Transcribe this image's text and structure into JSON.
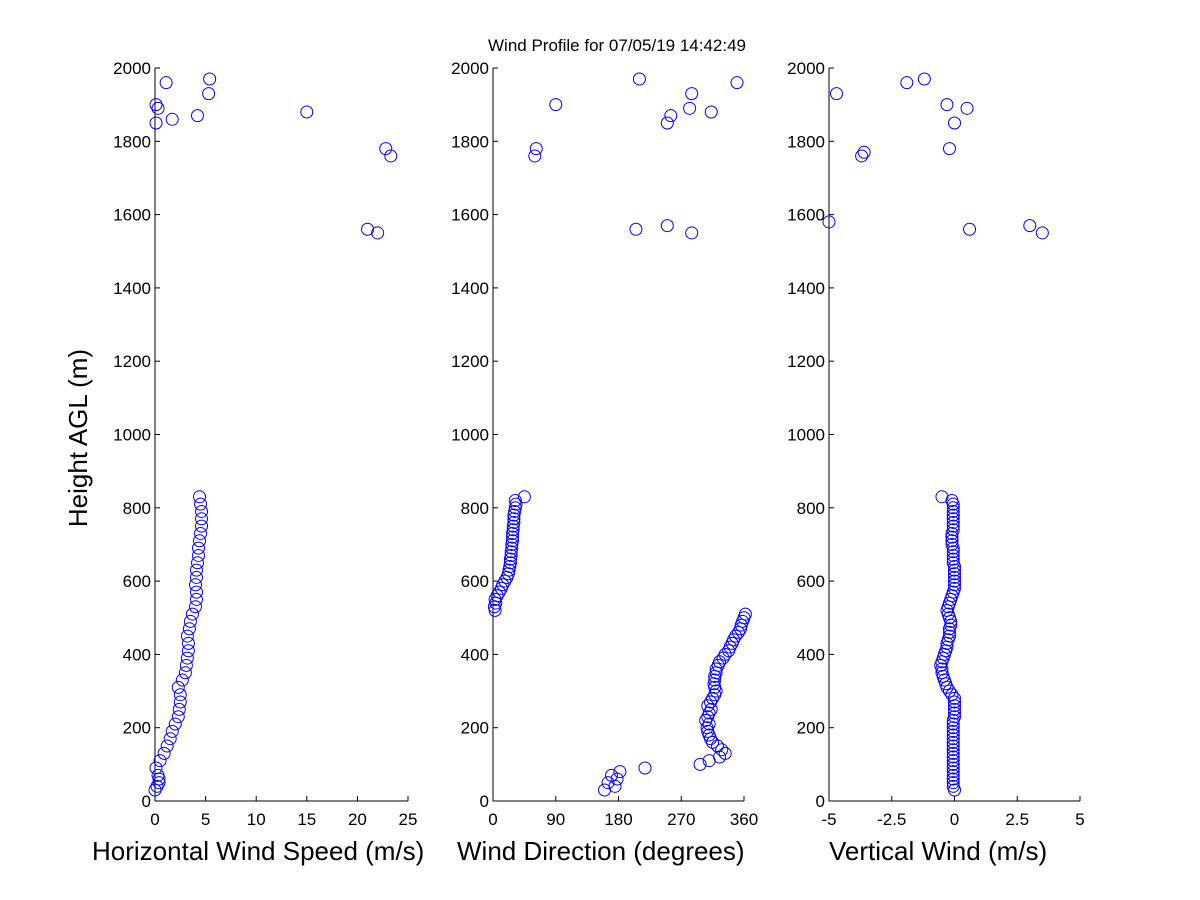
{
  "figure": {
    "title": "Wind Profile for  07/05/19 14:42:49",
    "marker_color": "#0000ff"
  },
  "chart_data": [
    {
      "type": "scatter",
      "xlabel": "Horizontal Wind Speed (m/s)",
      "ylabel": "Height AGL (m)",
      "xlim": [
        0,
        25
      ],
      "ylim": [
        0,
        2000
      ],
      "x_ticks": [
        0,
        5,
        10,
        15,
        20,
        25
      ],
      "x_tick_labels": [
        "0",
        "5",
        "10",
        "15",
        "20",
        "25"
      ],
      "y_ticks": [
        0,
        200,
        400,
        600,
        800,
        1000,
        1200,
        1400,
        1600,
        1800,
        2000
      ],
      "y_tick_labels": [
        "0",
        "200",
        "400",
        "600",
        "800",
        "1000",
        "1200",
        "1400",
        "1600",
        "1800",
        "2000"
      ],
      "points": [
        [
          0.0,
          30
        ],
        [
          0.2,
          40
        ],
        [
          0.4,
          50
        ],
        [
          0.4,
          60
        ],
        [
          0.3,
          70
        ],
        [
          0.1,
          90
        ],
        [
          0.5,
          110
        ],
        [
          0.9,
          130
        ],
        [
          1.2,
          150
        ],
        [
          1.5,
          170
        ],
        [
          1.7,
          190
        ],
        [
          2.0,
          210
        ],
        [
          2.3,
          230
        ],
        [
          2.4,
          250
        ],
        [
          2.5,
          270
        ],
        [
          2.5,
          290
        ],
        [
          2.3,
          310
        ],
        [
          2.7,
          330
        ],
        [
          3.0,
          350
        ],
        [
          3.1,
          370
        ],
        [
          3.2,
          390
        ],
        [
          3.3,
          410
        ],
        [
          3.3,
          430
        ],
        [
          3.2,
          450
        ],
        [
          3.4,
          470
        ],
        [
          3.5,
          490
        ],
        [
          3.7,
          510
        ],
        [
          4.0,
          530
        ],
        [
          4.1,
          550
        ],
        [
          4.1,
          570
        ],
        [
          4.0,
          590
        ],
        [
          4.1,
          610
        ],
        [
          4.1,
          630
        ],
        [
          4.2,
          650
        ],
        [
          4.3,
          670
        ],
        [
          4.3,
          690
        ],
        [
          4.4,
          710
        ],
        [
          4.5,
          730
        ],
        [
          4.6,
          750
        ],
        [
          4.6,
          770
        ],
        [
          4.6,
          790
        ],
        [
          4.5,
          810
        ],
        [
          4.4,
          830
        ],
        [
          21.0,
          1560
        ],
        [
          22.0,
          1550
        ],
        [
          22.8,
          1780
        ],
        [
          23.3,
          1760
        ],
        [
          15.0,
          1880
        ],
        [
          0.1,
          1850
        ],
        [
          0.1,
          1900
        ],
        [
          0.3,
          1890
        ],
        [
          1.7,
          1860
        ],
        [
          4.2,
          1870
        ],
        [
          1.1,
          1960
        ],
        [
          5.3,
          1930
        ],
        [
          5.4,
          1970
        ]
      ]
    },
    {
      "type": "scatter",
      "xlabel": "Wind Direction (degrees)",
      "xlim": [
        0,
        360
      ],
      "ylim": [
        0,
        2000
      ],
      "x_ticks": [
        0,
        90,
        180,
        270,
        360
      ],
      "x_tick_labels": [
        "0",
        "90",
        "180",
        "270",
        "360"
      ],
      "y_ticks": [
        0,
        200,
        400,
        600,
        800,
        1000,
        1200,
        1400,
        1600,
        1800,
        2000
      ],
      "y_tick_labels": [
        "0",
        "200",
        "400",
        "600",
        "800",
        "1000",
        "1200",
        "1400",
        "1600",
        "1800",
        "2000"
      ],
      "points": [
        [
          160,
          30
        ],
        [
          175,
          40
        ],
        [
          165,
          50
        ],
        [
          178,
          60
        ],
        [
          170,
          70
        ],
        [
          182,
          80
        ],
        [
          218,
          90
        ],
        [
          297,
          100
        ],
        [
          310,
          110
        ],
        [
          325,
          120
        ],
        [
          333,
          130
        ],
        [
          328,
          140
        ],
        [
          322,
          150
        ],
        [
          315,
          160
        ],
        [
          312,
          170
        ],
        [
          310,
          180
        ],
        [
          308,
          190
        ],
        [
          307,
          200
        ],
        [
          310,
          210
        ],
        [
          305,
          220
        ],
        [
          308,
          230
        ],
        [
          310,
          240
        ],
        [
          313,
          250
        ],
        [
          308,
          260
        ],
        [
          312,
          270
        ],
        [
          315,
          280
        ],
        [
          318,
          290
        ],
        [
          320,
          300
        ],
        [
          318,
          310
        ],
        [
          317,
          320
        ],
        [
          318,
          330
        ],
        [
          318,
          340
        ],
        [
          320,
          350
        ],
        [
          320,
          360
        ],
        [
          323,
          370
        ],
        [
          325,
          380
        ],
        [
          330,
          390
        ],
        [
          333,
          400
        ],
        [
          338,
          410
        ],
        [
          340,
          420
        ],
        [
          343,
          430
        ],
        [
          345,
          440
        ],
        [
          348,
          450
        ],
        [
          352,
          460
        ],
        [
          355,
          470
        ],
        [
          356,
          480
        ],
        [
          358,
          490
        ],
        [
          360,
          500
        ],
        [
          362,
          510
        ],
        [
          3,
          520
        ],
        [
          2,
          530
        ],
        [
          4,
          540
        ],
        [
          3,
          550
        ],
        [
          6,
          560
        ],
        [
          9,
          570
        ],
        [
          12,
          580
        ],
        [
          14,
          590
        ],
        [
          17,
          600
        ],
        [
          20,
          610
        ],
        [
          22,
          620
        ],
        [
          23,
          630
        ],
        [
          24,
          640
        ],
        [
          25,
          650
        ],
        [
          25,
          660
        ],
        [
          26,
          670
        ],
        [
          26,
          680
        ],
        [
          27,
          690
        ],
        [
          27,
          700
        ],
        [
          28,
          710
        ],
        [
          28,
          720
        ],
        [
          28,
          730
        ],
        [
          29,
          740
        ],
        [
          29,
          750
        ],
        [
          30,
          760
        ],
        [
          30,
          770
        ],
        [
          30,
          780
        ],
        [
          31,
          790
        ],
        [
          32,
          800
        ],
        [
          33,
          810
        ],
        [
          32,
          820
        ],
        [
          45,
          830
        ],
        [
          205,
          1560
        ],
        [
          250,
          1570
        ],
        [
          285,
          1550
        ],
        [
          60,
          1760
        ],
        [
          62,
          1780
        ],
        [
          90,
          1900
        ],
        [
          210,
          1970
        ],
        [
          250,
          1850
        ],
        [
          255,
          1870
        ],
        [
          282,
          1890
        ],
        [
          285,
          1930
        ],
        [
          313,
          1880
        ],
        [
          350,
          1960
        ]
      ]
    },
    {
      "type": "scatter",
      "xlabel": "Vertical Wind (m/s)",
      "xlim": [
        -5,
        5
      ],
      "ylim": [
        0,
        2000
      ],
      "x_ticks": [
        -5,
        -2.5,
        0,
        2.5,
        5
      ],
      "x_tick_labels": [
        "-5",
        "-2.5",
        "0",
        "2.5",
        "5"
      ],
      "y_ticks": [
        0,
        200,
        400,
        600,
        800,
        1000,
        1200,
        1400,
        1600,
        1800,
        2000
      ],
      "y_tick_labels": [
        "0",
        "200",
        "400",
        "600",
        "800",
        "1000",
        "1200",
        "1400",
        "1600",
        "1800",
        "2000"
      ],
      "points": [
        [
          0.0,
          30
        ],
        [
          -0.05,
          40
        ],
        [
          -0.05,
          50
        ],
        [
          -0.05,
          60
        ],
        [
          -0.05,
          70
        ],
        [
          -0.05,
          80
        ],
        [
          -0.05,
          90
        ],
        [
          -0.05,
          100
        ],
        [
          -0.05,
          110
        ],
        [
          -0.05,
          120
        ],
        [
          -0.05,
          130
        ],
        [
          -0.05,
          140
        ],
        [
          -0.05,
          150
        ],
        [
          -0.05,
          160
        ],
        [
          -0.05,
          170
        ],
        [
          -0.05,
          180
        ],
        [
          -0.05,
          190
        ],
        [
          -0.05,
          200
        ],
        [
          -0.05,
          210
        ],
        [
          -0.05,
          220
        ],
        [
          0.0,
          230
        ],
        [
          0.0,
          240
        ],
        [
          0.0,
          250
        ],
        [
          0.0,
          260
        ],
        [
          0.0,
          270
        ],
        [
          0.0,
          280
        ],
        [
          -0.1,
          290
        ],
        [
          -0.2,
          300
        ],
        [
          -0.3,
          310
        ],
        [
          -0.35,
          320
        ],
        [
          -0.4,
          330
        ],
        [
          -0.45,
          340
        ],
        [
          -0.5,
          350
        ],
        [
          -0.5,
          360
        ],
        [
          -0.55,
          370
        ],
        [
          -0.5,
          380
        ],
        [
          -0.45,
          390
        ],
        [
          -0.4,
          400
        ],
        [
          -0.35,
          410
        ],
        [
          -0.3,
          420
        ],
        [
          -0.3,
          430
        ],
        [
          -0.25,
          440
        ],
        [
          -0.2,
          450
        ],
        [
          -0.2,
          460
        ],
        [
          -0.2,
          470
        ],
        [
          -0.15,
          480
        ],
        [
          -0.15,
          490
        ],
        [
          -0.2,
          500
        ],
        [
          -0.25,
          510
        ],
        [
          -0.3,
          520
        ],
        [
          -0.25,
          530
        ],
        [
          -0.2,
          540
        ],
        [
          -0.15,
          550
        ],
        [
          -0.1,
          560
        ],
        [
          -0.05,
          570
        ],
        [
          0.0,
          580
        ],
        [
          0.0,
          590
        ],
        [
          0.0,
          600
        ],
        [
          0.0,
          610
        ],
        [
          0.0,
          620
        ],
        [
          0.0,
          630
        ],
        [
          0.0,
          640
        ],
        [
          -0.05,
          650
        ],
        [
          -0.05,
          660
        ],
        [
          -0.05,
          670
        ],
        [
          -0.05,
          680
        ],
        [
          -0.05,
          690
        ],
        [
          -0.1,
          700
        ],
        [
          -0.1,
          710
        ],
        [
          -0.1,
          720
        ],
        [
          -0.1,
          730
        ],
        [
          -0.05,
          740
        ],
        [
          -0.05,
          750
        ],
        [
          -0.05,
          760
        ],
        [
          -0.05,
          770
        ],
        [
          -0.05,
          780
        ],
        [
          -0.05,
          790
        ],
        [
          -0.05,
          800
        ],
        [
          -0.05,
          810
        ],
        [
          -0.1,
          820
        ],
        [
          -0.5,
          830
        ],
        [
          -5.0,
          1580
        ],
        [
          3.0,
          1570
        ],
        [
          3.5,
          1550
        ],
        [
          0.6,
          1560
        ],
        [
          -3.7,
          1760
        ],
        [
          -3.6,
          1770
        ],
        [
          -0.2,
          1780
        ],
        [
          0.0,
          1850
        ],
        [
          0.5,
          1890
        ],
        [
          -0.3,
          1900
        ],
        [
          -4.7,
          1930
        ],
        [
          -1.9,
          1960
        ],
        [
          -1.2,
          1970
        ]
      ]
    }
  ]
}
